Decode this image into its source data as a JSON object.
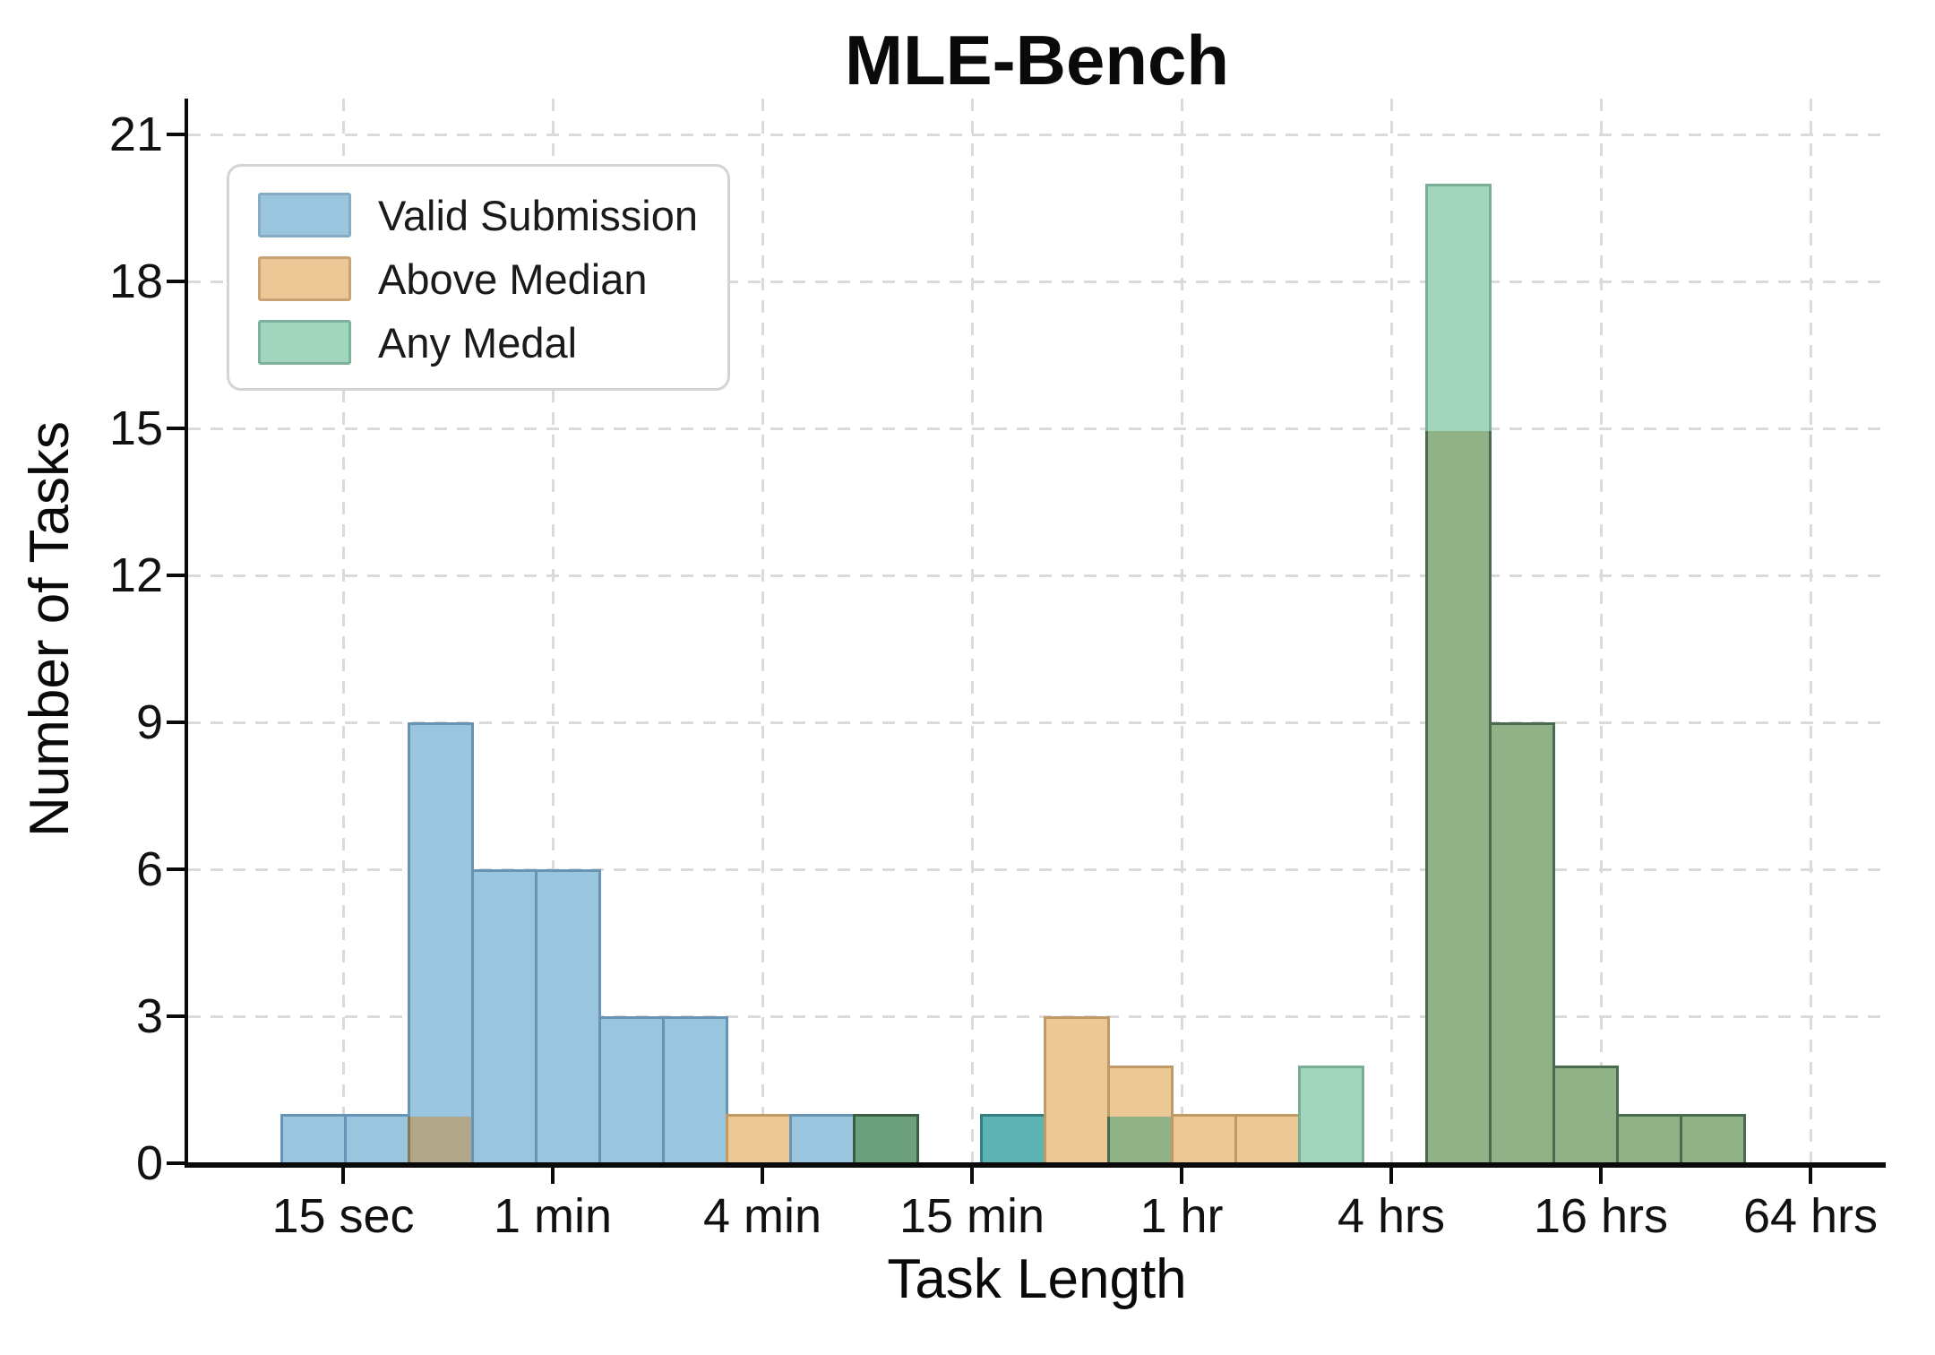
{
  "colors": {
    "fills": {
      "B": "#9ac5de",
      "O": "#edc897",
      "G": "#9fd6bd",
      "BO": "#b0a789",
      "BG": "#5bb3b3",
      "OG": "#90b287",
      "BOG": "#6aa07b"
    },
    "edges": {
      "B": "#6694b4",
      "O": "#c09a66",
      "G": "#79ad94",
      "BO": "#857a58",
      "BG": "#357f80",
      "OG": "#4b6b51",
      "BOG": "#3c5e44"
    },
    "legend_swatch_edges": {
      "B": "#86abc2",
      "O": "#c9a376",
      "G": "#7fb29c"
    },
    "grid": "#dadada",
    "spine": "#0a0a0a",
    "text": "#111111",
    "legend_border": "#d4d4d4"
  },
  "legend": {
    "position": "upper-left",
    "items": [
      {
        "label": "Valid Submission",
        "color_key": "B"
      },
      {
        "label": "Above Median",
        "color_key": "O"
      },
      {
        "label": "Any Medal",
        "color_key": "G"
      }
    ]
  },
  "chart_data": {
    "type": "bar",
    "subtype": "overlaid-histogram",
    "title": "MLE-Bench",
    "xlabel": "Task Length",
    "ylabel": "Number of Tasks",
    "x_scale": "log",
    "grid": "dashed",
    "legend_position": "upper left",
    "x_tick_labels": [
      "15 sec",
      "1 min",
      "4 min",
      "15 min",
      "1 hr",
      "4 hrs",
      "16 hrs",
      "64 hrs"
    ],
    "x_tick_seconds": [
      15,
      60,
      240,
      900,
      3600,
      14400,
      57600,
      230400
    ],
    "y_ticks": [
      0,
      3,
      6,
      9,
      12,
      15,
      18,
      21
    ],
    "ylim": [
      0,
      21
    ],
    "bin_edges_seconds_approx": [
      10,
      15,
      23,
      35,
      54,
      82,
      125,
      190,
      289,
      441,
      671,
      1022,
      1556,
      2370,
      3609,
      5496,
      8370,
      12745,
      19410,
      29557,
      45013,
      68548,
      104383,
      158955
    ],
    "series": [
      {
        "name": "Valid Submission",
        "key": "B",
        "values": [
          1,
          1,
          9,
          6,
          6,
          3,
          3,
          0,
          1,
          1,
          0,
          1,
          0,
          0,
          0,
          0,
          0,
          0,
          0,
          0,
          0,
          0,
          0
        ]
      },
      {
        "name": "Above Median",
        "key": "O",
        "values": [
          0,
          0,
          1,
          0,
          0,
          0,
          0,
          1,
          0,
          1,
          0,
          0,
          3,
          2,
          1,
          1,
          0,
          0,
          15,
          9,
          2,
          1,
          1
        ]
      },
      {
        "name": "Any Medal",
        "key": "G",
        "values": [
          0,
          0,
          0,
          0,
          0,
          0,
          0,
          0,
          0,
          1,
          0,
          1,
          0,
          1,
          0,
          0,
          2,
          0,
          20,
          9,
          2,
          1,
          1
        ]
      }
    ]
  }
}
